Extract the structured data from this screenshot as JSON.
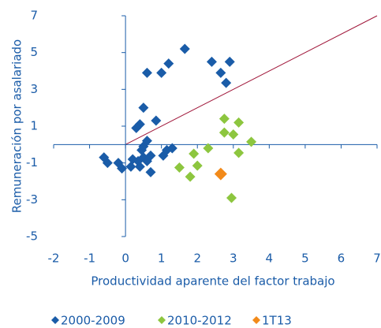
{
  "chart_data": {
    "type": "scatter",
    "y_label": "Remuneración por asalariado",
    "x_label": "Productividad aparente del factor trabajo",
    "xlim": [
      -2,
      7
    ],
    "xticks": [
      -2,
      -1,
      0,
      1,
      2,
      3,
      4,
      5,
      6,
      7
    ],
    "ylim": [
      -5,
      7
    ],
    "yticks": [
      -5,
      -3,
      -1,
      1,
      3,
      5,
      7
    ],
    "series": [
      {
        "name": "2000-2009",
        "color": "#1a5ca8",
        "x": [
          -0.6,
          -0.5,
          -0.2,
          -0.1,
          0.15,
          0.2,
          0.35,
          0.4,
          0.5,
          0.6,
          0.7,
          0.45,
          0.5,
          0.6,
          0.4,
          0.3,
          0.5,
          0.85,
          0.7,
          1.05,
          1.15,
          1.3,
          0.6,
          1.0,
          1.2,
          1.65,
          2.4,
          2.65,
          2.9,
          2.8
        ],
        "y": [
          -0.7,
          -1.0,
          -1.0,
          -1.3,
          -1.2,
          -0.8,
          -0.9,
          -1.2,
          -0.7,
          -0.9,
          -0.6,
          -0.3,
          -0.1,
          0.2,
          1.1,
          0.9,
          2.0,
          1.3,
          -1.5,
          -0.6,
          -0.3,
          -0.2,
          3.9,
          3.9,
          4.4,
          5.2,
          4.5,
          3.9,
          4.5,
          3.35
        ]
      },
      {
        "name": "2010-2012",
        "color": "#8dc63f",
        "x": [
          1.5,
          1.8,
          1.9,
          2.0,
          2.3,
          2.75,
          2.75,
          3.0,
          3.15,
          3.15,
          3.5,
          2.95
        ],
        "y": [
          -1.25,
          -1.75,
          -0.5,
          -1.15,
          -0.2,
          1.4,
          0.65,
          0.55,
          1.2,
          -0.45,
          0.15,
          -2.9
        ]
      },
      {
        "name": "1T13",
        "color": "#f28a1a",
        "x": [
          2.65
        ],
        "y": [
          -1.6
        ]
      }
    ]
  }
}
